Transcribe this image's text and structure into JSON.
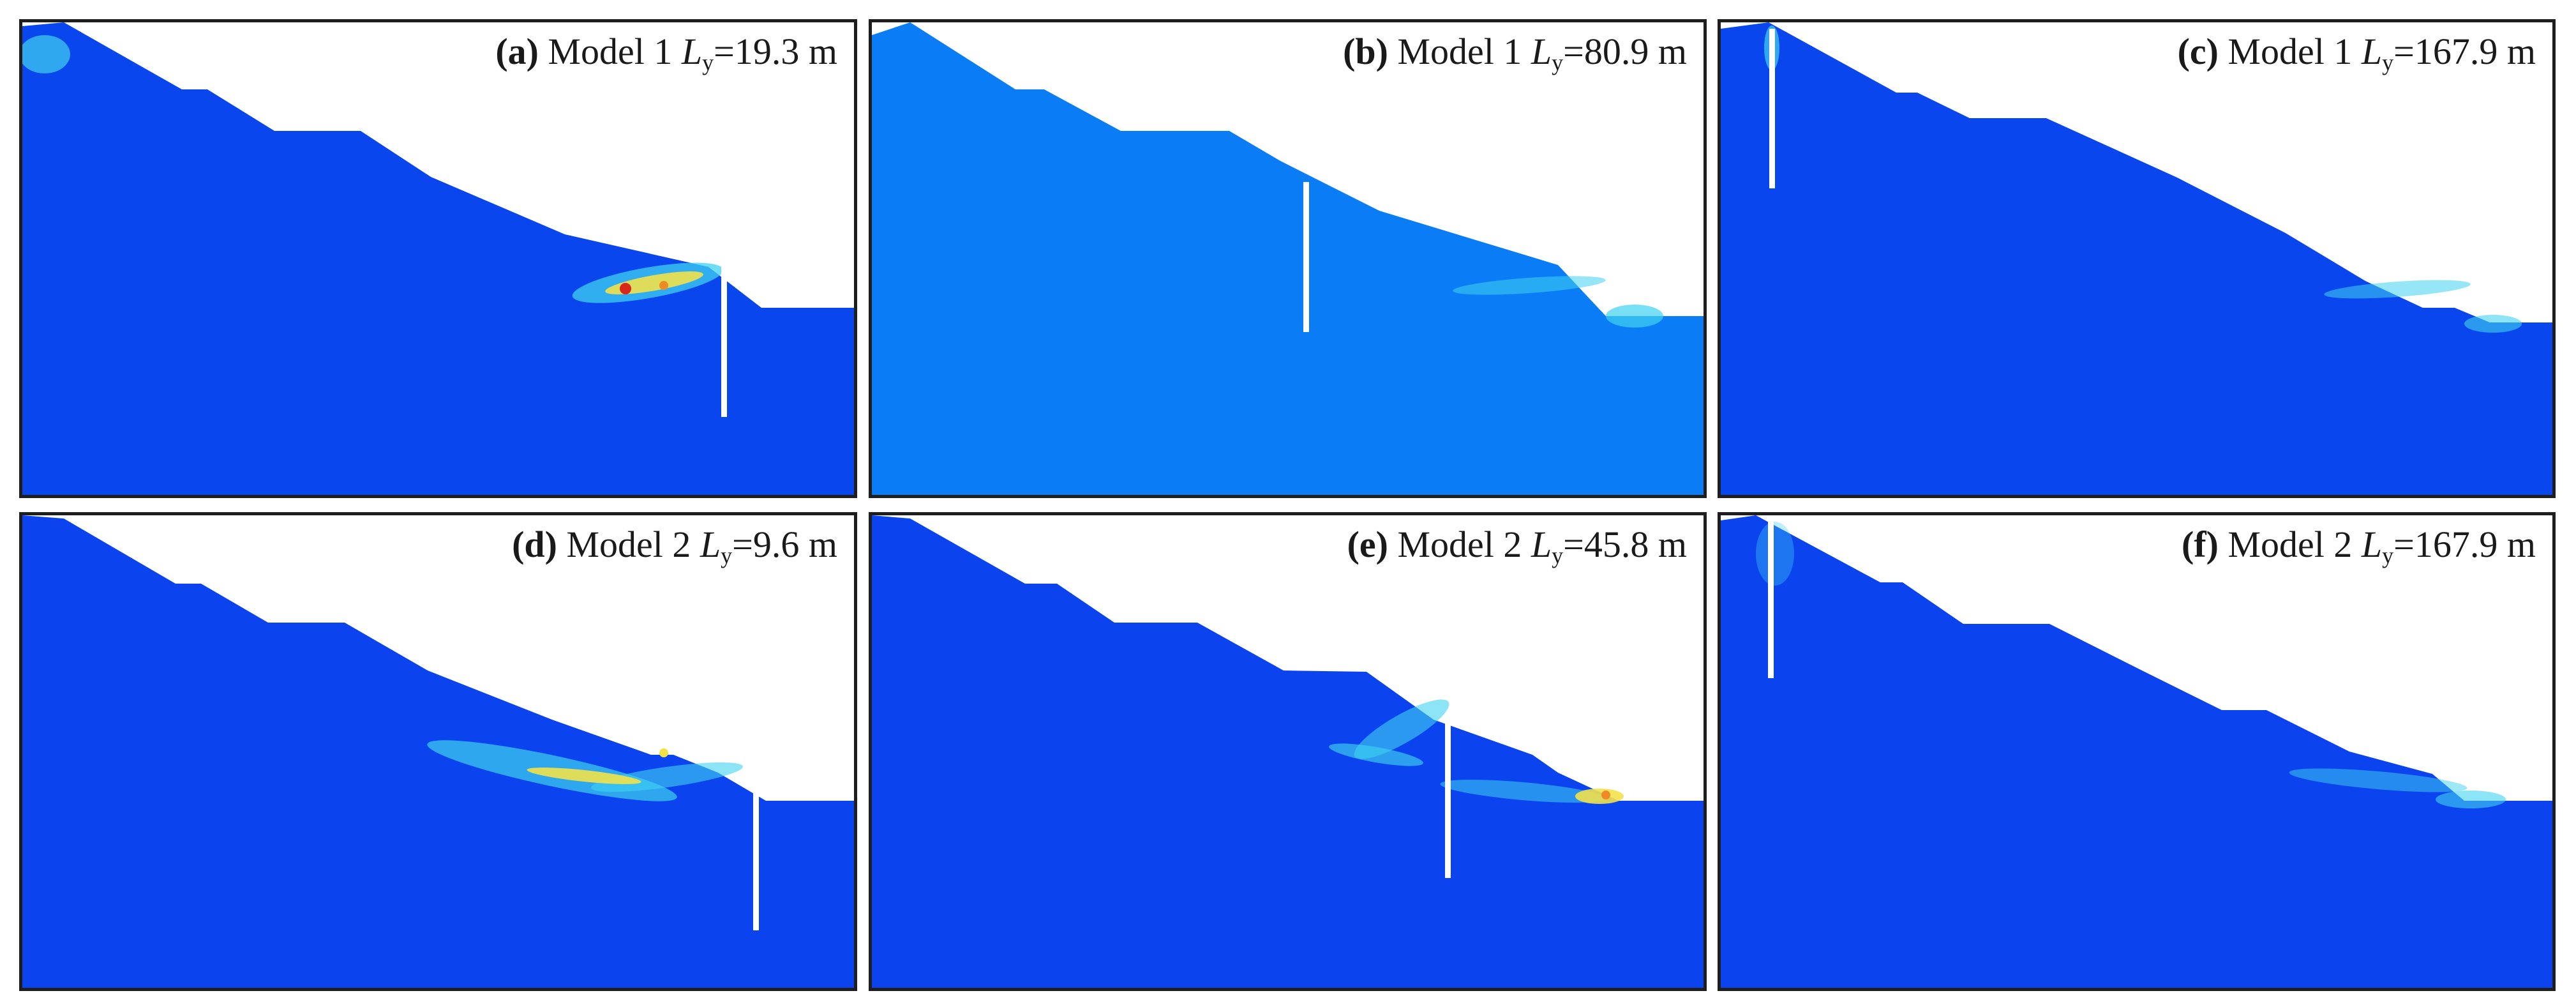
{
  "figure": {
    "colors": {
      "slope_model1": "#0a46ee",
      "slope_model1_b": "#0a7df6",
      "slope_model2": "#0b44ee",
      "crack": "#ffffff",
      "band_cyan": "#3fd2f0",
      "band_yellow": "#f2e24a",
      "band_orange": "#f08a26",
      "band_red": "#d8281e",
      "frame": "#1e1e1e"
    },
    "panels": [
      {
        "tag": "(a)",
        "model": "Model 1",
        "symbol": "L",
        "subscript": "y",
        "value": "=19.3 m"
      },
      {
        "tag": "(b)",
        "model": "Model 1",
        "symbol": "L",
        "subscript": "y",
        "value": "=80.9 m"
      },
      {
        "tag": "(c)",
        "model": "Model 1",
        "symbol": "L",
        "subscript": "y",
        "value": "=167.9 m"
      },
      {
        "tag": "(d)",
        "model": "Model 2",
        "symbol": "L",
        "subscript": "y",
        "value": "=9.6 m"
      },
      {
        "tag": "(e)",
        "model": "Model 2",
        "symbol": "L",
        "subscript": "y",
        "value": "=45.8 m"
      },
      {
        "tag": "(f)",
        "model": "Model 2 ",
        "symbol": "L",
        "subscript": "y",
        "value": "=167.9 m"
      }
    ]
  }
}
